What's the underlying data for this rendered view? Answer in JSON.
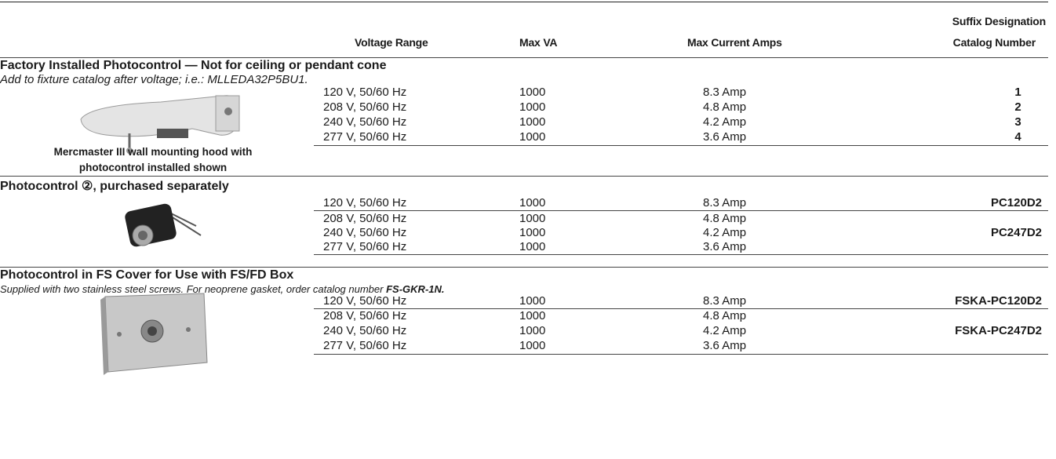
{
  "header": {
    "columns": [
      "Voltage Range",
      "Max VA",
      "Max Current Amps"
    ],
    "catalog_header": [
      "Suffix Designation",
      "Catalog Number"
    ]
  },
  "sections": [
    {
      "title": "Factory Installed Photocontrol — Not for ceiling or pendant cone",
      "note": "Add to fixture catalog after voltage; i.e.: MLLEDA32P5BU1.",
      "caption": [
        "Mercmaster III wall mounting hood with",
        "photocontrol installed shown"
      ],
      "rows": [
        {
          "voltage": "120 V, 50/60 Hz",
          "max_va": "1000",
          "amps": "8.3 Amp",
          "catalog": "1"
        },
        {
          "voltage": "208 V, 50/60 Hz",
          "max_va": "1000",
          "amps": "4.8 Amp",
          "catalog": "2"
        },
        {
          "voltage": "240 V, 50/60 Hz",
          "max_va": "1000",
          "amps": "4.2 Amp",
          "catalog": "3"
        },
        {
          "voltage": "277 V, 50/60 Hz",
          "max_va": "1000",
          "amps": "3.6 Amp",
          "catalog": "4"
        }
      ]
    },
    {
      "title": "Photocontrol ②, purchased separately",
      "rows": [
        {
          "voltage": "120 V, 50/60 Hz",
          "max_va": "1000",
          "amps": "8.3 Amp",
          "catalog": "PC120D2"
        },
        {
          "voltage": "208 V, 50/60 Hz",
          "max_va": "1000",
          "amps": "4.8 Amp",
          "catalog": "PC247D2"
        },
        {
          "voltage": "240 V, 50/60 Hz",
          "max_va": "1000",
          "amps": "4.2 Amp"
        },
        {
          "voltage": "277 V, 50/60 Hz",
          "max_va": "1000",
          "amps": "3.6 Amp"
        }
      ]
    },
    {
      "title": "Photocontrol in FS Cover for Use with FS/FD Box",
      "note": "Supplied with two stainless steel screws. For neoprene gasket, order catalog number",
      "note_code": "FS-GKR-1N.",
      "rows": [
        {
          "voltage": "120 V, 50/60 Hz",
          "max_va": "1000",
          "amps": "8.3 Amp",
          "catalog": "FSKA-PC120D2"
        },
        {
          "voltage": "208 V, 50/60 Hz",
          "max_va": "1000",
          "amps": "4.8 Amp",
          "catalog": "FSKA-PC247D2"
        },
        {
          "voltage": "240 V, 50/60 Hz",
          "max_va": "1000",
          "amps": "4.2 Amp"
        },
        {
          "voltage": "277 V, 50/60 Hz",
          "max_va": "1000",
          "amps": "3.6 Amp"
        }
      ]
    }
  ]
}
